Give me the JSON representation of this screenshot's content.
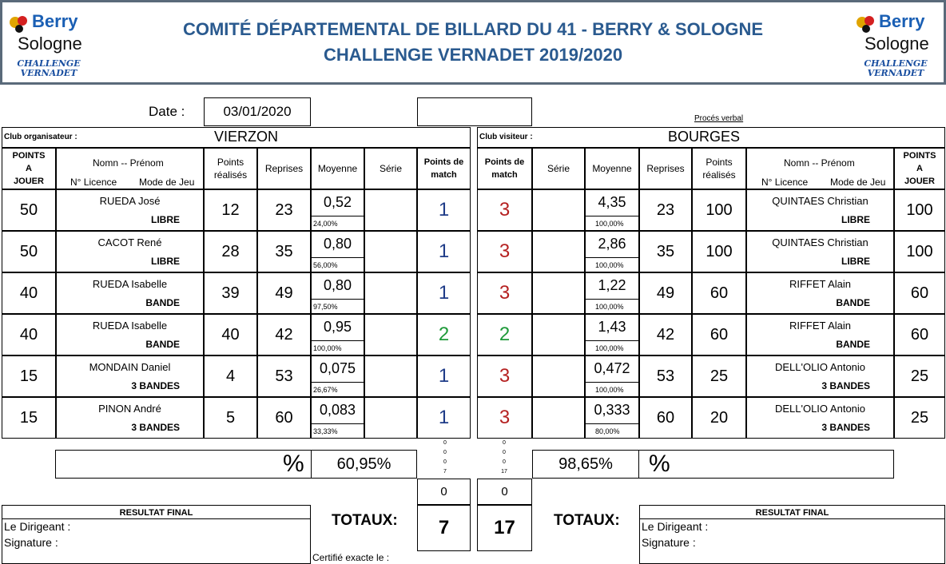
{
  "header": {
    "title_line1": "COMITÉ DÉPARTEMENTAL DE BILLARD DU 41 - BERRY & SOLOGNE",
    "title_line2": "CHALLENGE VERNADET 2019/2020",
    "logo_word1": "Berry",
    "logo_word2": "Sologne",
    "logo_caption1": "CHALLENGE",
    "logo_caption2": "VERNADET"
  },
  "date_label": "Date :",
  "date_value": "03/01/2020",
  "proces_verbal": "Procés verbal",
  "home": {
    "club_label": "Club organisateur :",
    "club_name": "VIERZON",
    "headers": {
      "points_a_jouer": "POINTS A JOUER",
      "nom_prenom": "Nomn -- Prénom",
      "licence": "N° Licence",
      "mode": "Mode de Jeu",
      "points_realises": "Points réalisés",
      "reprises": "Reprises",
      "moyenne": "Moyenne",
      "serie": "Série",
      "points_match": "Points de match"
    },
    "rows": [
      {
        "a_jouer": "50",
        "name": "RUEDA José",
        "mode": "LIBRE",
        "realises": "12",
        "reprises": "23",
        "moyenne": "0,52",
        "pct": "24,00%",
        "serie": "",
        "match": "1",
        "color": "#1f3c88"
      },
      {
        "a_jouer": "50",
        "name": "CACOT René",
        "mode": "LIBRE",
        "realises": "28",
        "reprises": "35",
        "moyenne": "0,80",
        "pct": "56,00%",
        "serie": "",
        "match": "1",
        "color": "#1f3c88"
      },
      {
        "a_jouer": "40",
        "name": "RUEDA Isabelle",
        "mode": "BANDE",
        "realises": "39",
        "reprises": "49",
        "moyenne": "0,80",
        "pct": "97,50%",
        "serie": "",
        "match": "1",
        "color": "#1f3c88"
      },
      {
        "a_jouer": "40",
        "name": "RUEDA Isabelle",
        "mode": "BANDE",
        "realises": "40",
        "reprises": "42",
        "moyenne": "0,95",
        "pct": "100,00%",
        "serie": "",
        "match": "2",
        "color": "#1f9a3a"
      },
      {
        "a_jouer": "15",
        "name": "MONDAIN Daniel",
        "mode": "3 BANDES",
        "realises": "4",
        "reprises": "53",
        "moyenne": "0,075",
        "pct": "26,67%",
        "serie": "",
        "match": "1",
        "color": "#1f3c88"
      },
      {
        "a_jouer": "15",
        "name": "PINON André",
        "mode": "3 BANDES",
        "realises": "5",
        "reprises": "60",
        "moyenne": "0,083",
        "pct": "33,33%",
        "serie": "",
        "match": "1",
        "color": "#1f3c88"
      }
    ],
    "percent_symbol": "%",
    "percent_value": "60,95%",
    "side_numbers": [
      "0",
      "0",
      "0",
      "7"
    ],
    "zero_total": "0",
    "total": "7"
  },
  "visitor": {
    "club_label": "Club visiteur :",
    "club_name": "BOURGES",
    "headers": {
      "points_match": "Points de match",
      "serie": "Série",
      "moyenne": "Moyenne",
      "reprises": "Reprises",
      "points_realises": "Points réalisés",
      "nom_prenom": "Nomn -- Prénom",
      "licence": "N° Licence",
      "mode": "Mode de Jeu",
      "points_a_jouer": "POINTS A JOUER"
    },
    "rows": [
      {
        "match": "3",
        "color": "#b52121",
        "serie": "",
        "moyenne": "4,35",
        "pct": "100,00%",
        "reprises": "23",
        "realises": "100",
        "name": "QUINTAES Christian",
        "mode": "LIBRE",
        "a_jouer": "100"
      },
      {
        "match": "3",
        "color": "#b52121",
        "serie": "",
        "moyenne": "2,86",
        "pct": "100,00%",
        "reprises": "35",
        "realises": "100",
        "name": "QUINTAES Christian",
        "mode": "LIBRE",
        "a_jouer": "100"
      },
      {
        "match": "3",
        "color": "#b52121",
        "serie": "",
        "moyenne": "1,22",
        "pct": "100,00%",
        "reprises": "49",
        "realises": "60",
        "name": "RIFFET Alain",
        "mode": "BANDE",
        "a_jouer": "60"
      },
      {
        "match": "2",
        "color": "#1f9a3a",
        "serie": "",
        "moyenne": "1,43",
        "pct": "100,00%",
        "reprises": "42",
        "realises": "60",
        "name": "RIFFET Alain",
        "mode": "BANDE",
        "a_jouer": "60"
      },
      {
        "match": "3",
        "color": "#b52121",
        "serie": "",
        "moyenne": "0,472",
        "pct": "100,00%",
        "reprises": "53",
        "realises": "25",
        "name": "DELL'OLIO Antonio",
        "mode": "3 BANDES",
        "a_jouer": "25"
      },
      {
        "match": "3",
        "color": "#b52121",
        "serie": "",
        "moyenne": "0,333",
        "pct": "80,00%",
        "reprises": "60",
        "realises": "20",
        "name": "DELL'OLIO Antonio",
        "mode": "3 BANDES",
        "a_jouer": "25"
      }
    ],
    "percent_symbol": "%",
    "percent_value": "98,65%",
    "side_numbers": [
      "0",
      "0",
      "0",
      "17"
    ],
    "zero_total": "0",
    "total": "17"
  },
  "footer": {
    "resultat_final": "RESULTAT FINAL",
    "dirigeant": "Le Dirigeant :",
    "signature": "Signature :",
    "totaux": "TOTAUX:",
    "certifie": "Certifié exacte le :"
  }
}
